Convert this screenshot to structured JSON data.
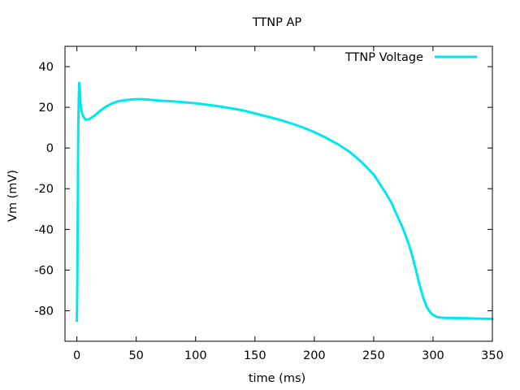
{
  "chart_data": {
    "type": "line",
    "title": "TTNP AP",
    "xlabel": "time (ms)",
    "ylabel": "Vm (mV)",
    "xlim": [
      -10,
      350
    ],
    "ylim": [
      -95,
      50
    ],
    "xticks": [
      0,
      50,
      100,
      150,
      200,
      250,
      300,
      350
    ],
    "yticks": [
      -80,
      -60,
      -40,
      -20,
      0,
      20,
      40
    ],
    "grid": false,
    "legend": {
      "position": "top-right"
    },
    "colors": {
      "series": "#00e8ee",
      "axes": "#000000",
      "background": "#ffffff"
    },
    "series": [
      {
        "name": "TTNP Voltage",
        "x": [
          0,
          0.4,
          0.8,
          1.2,
          1.6,
          2,
          2.5,
          3,
          4,
          5,
          6,
          7,
          8,
          10,
          15,
          20,
          25,
          30,
          35,
          40,
          45,
          50,
          55,
          60,
          70,
          80,
          100,
          120,
          140,
          150,
          160,
          170,
          180,
          190,
          200,
          210,
          220,
          230,
          240,
          250,
          255,
          260,
          265,
          270,
          275,
          280,
          283,
          286,
          289,
          292,
          295,
          298,
          300,
          303,
          306,
          310,
          320,
          330,
          340,
          350
        ],
        "y": [
          -85,
          -66,
          -26,
          12,
          24,
          32,
          29,
          22,
          18,
          16,
          15,
          14,
          14,
          14,
          16,
          18.5,
          20.5,
          22,
          23,
          23.5,
          23.8,
          24,
          24,
          23.8,
          23.3,
          23,
          22,
          20.5,
          18.5,
          17,
          15.5,
          14,
          12.2,
          10.2,
          7.8,
          5,
          1.8,
          -2,
          -7,
          -13,
          -17.5,
          -22,
          -27,
          -33.5,
          -40,
          -48,
          -54,
          -61,
          -68,
          -74,
          -78.5,
          -81,
          -82,
          -83,
          -83.3,
          -83.5,
          -83.6,
          -83.7,
          -83.9,
          -84
        ]
      }
    ]
  }
}
